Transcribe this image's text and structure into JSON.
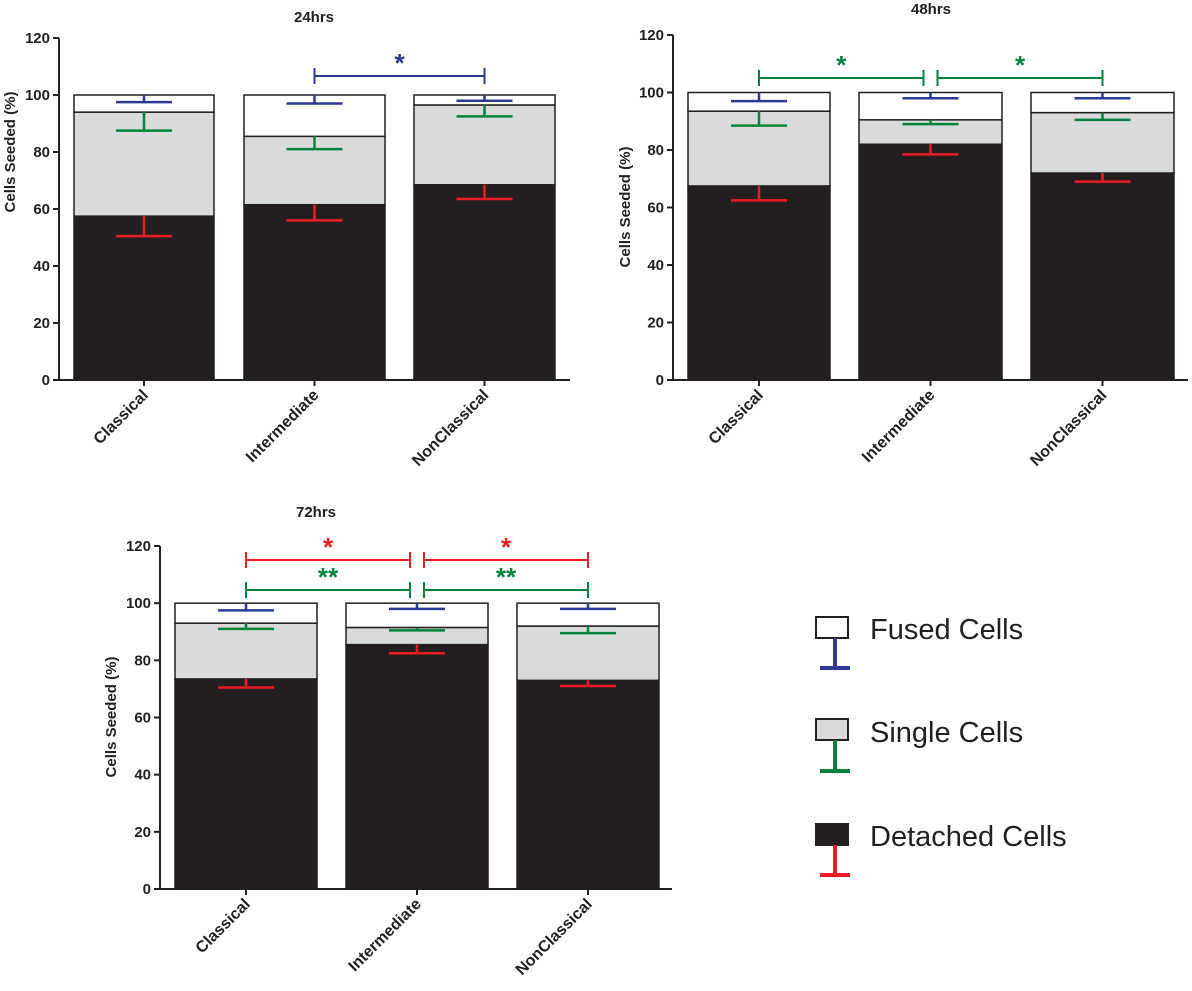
{
  "colors": {
    "detached": "#231f20",
    "single": "#d9dadb",
    "fused": "#ffffff",
    "fused_err": "#2b3990",
    "single_err": "#00843d",
    "detached_err": "#ed1c24"
  },
  "chart_data": [
    {
      "type": "bar",
      "stacked": true,
      "title": "24hrs",
      "ylabel": "Cells Seeded (%)",
      "ylim": [
        0,
        120
      ],
      "yticks": [
        0,
        20,
        40,
        60,
        80,
        100,
        120
      ],
      "categories": [
        "Classical",
        "Intermediate",
        "NonClassical"
      ],
      "series": [
        {
          "name": "Detached Cells",
          "values": [
            57.5,
            61.5,
            68.5
          ],
          "errors": [
            7,
            5.5,
            5
          ]
        },
        {
          "name": "Single Cells",
          "values": [
            36.5,
            24,
            28
          ],
          "errors": [
            6.5,
            4.5,
            4
          ]
        },
        {
          "name": "Fused Cells",
          "values": [
            6,
            14.5,
            3.5
          ],
          "errors": [
            2.5,
            3,
            2
          ]
        }
      ],
      "significance": [
        {
          "from": 1,
          "to": 2,
          "label": "*",
          "series": "Fused Cells"
        }
      ]
    },
    {
      "type": "bar",
      "stacked": true,
      "title": "48hrs",
      "ylabel": "Cells Seeded (%)",
      "ylim": [
        0,
        120
      ],
      "yticks": [
        0,
        20,
        40,
        60,
        80,
        100,
        120
      ],
      "categories": [
        "Classical",
        "Intermediate",
        "NonClassical"
      ],
      "series": [
        {
          "name": "Detached Cells",
          "values": [
            67.5,
            82,
            72
          ],
          "errors": [
            5,
            3.5,
            3
          ]
        },
        {
          "name": "Single Cells",
          "values": [
            26,
            8.5,
            21
          ],
          "errors": [
            5,
            1.5,
            2.5
          ]
        },
        {
          "name": "Fused Cells",
          "values": [
            6.5,
            9.5,
            7
          ],
          "errors": [
            3,
            2,
            2
          ]
        }
      ],
      "significance": [
        {
          "from": 0,
          "to": 1,
          "label": "*",
          "series": "Single Cells"
        },
        {
          "from": 1,
          "to": 2,
          "label": "*",
          "series": "Single Cells"
        }
      ]
    },
    {
      "type": "bar",
      "stacked": true,
      "title": "72hrs",
      "ylabel": "Cells Seeded (%)",
      "ylim": [
        0,
        120
      ],
      "yticks": [
        0,
        20,
        40,
        60,
        80,
        100,
        120
      ],
      "categories": [
        "Classical",
        "Intermediate",
        "NonClassical"
      ],
      "series": [
        {
          "name": "Detached Cells",
          "values": [
            73.5,
            85.5,
            73
          ],
          "errors": [
            3,
            3,
            2
          ]
        },
        {
          "name": "Single Cells",
          "values": [
            19.5,
            6,
            19
          ],
          "errors": [
            2,
            1,
            2.5
          ]
        },
        {
          "name": "Fused Cells",
          "values": [
            7,
            8.5,
            8
          ],
          "errors": [
            2.5,
            2,
            2
          ]
        }
      ],
      "significance": [
        {
          "from": 0,
          "to": 1,
          "label": "*",
          "series": "Detached Cells",
          "level": 2
        },
        {
          "from": 1,
          "to": 2,
          "label": "*",
          "series": "Detached Cells",
          "level": 2
        },
        {
          "from": 0,
          "to": 1,
          "label": "**",
          "series": "Single Cells",
          "level": 1
        },
        {
          "from": 1,
          "to": 2,
          "label": "**",
          "series": "Single Cells",
          "level": 1
        }
      ]
    }
  ],
  "legend": {
    "items": [
      {
        "label": "Fused Cells",
        "series": "Fused Cells"
      },
      {
        "label": "Single Cells",
        "series": "Single Cells"
      },
      {
        "label": "Detached Cells",
        "series": "Detached Cells"
      }
    ]
  }
}
